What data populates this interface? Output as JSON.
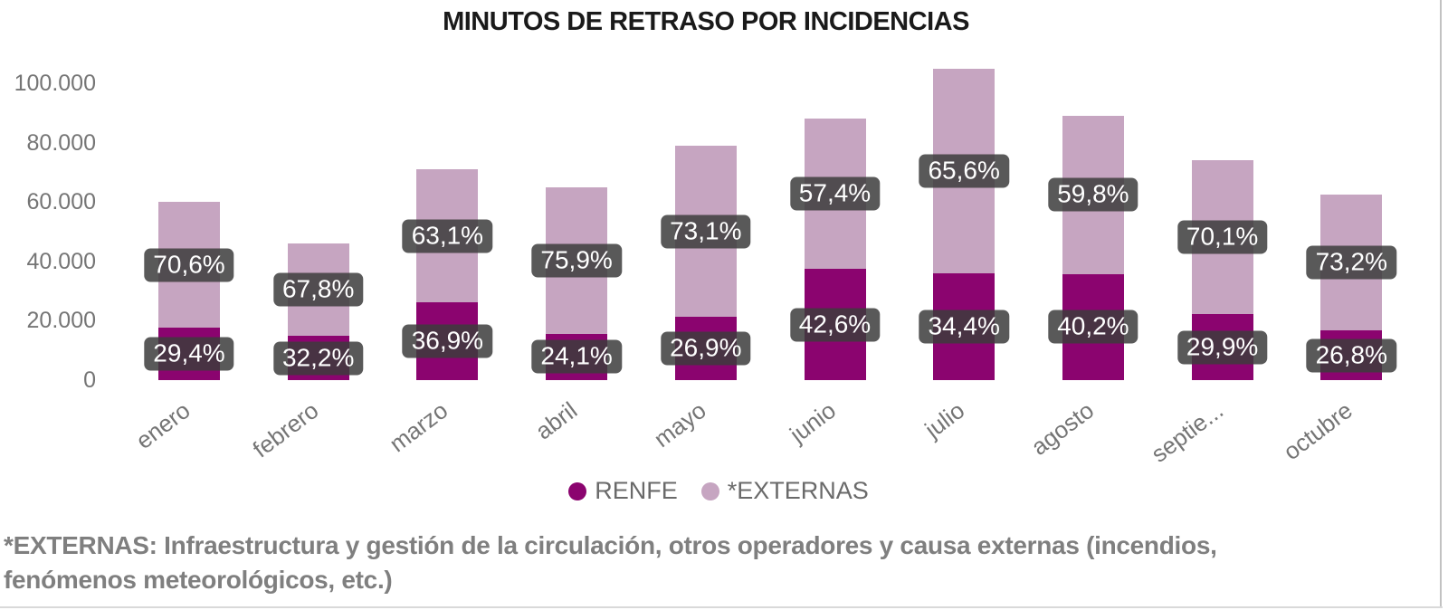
{
  "title": "MINUTOS DE RETRASO POR INCIDENCIAS",
  "colors": {
    "renfe": "#8B046F",
    "externas": "#C6A5C1",
    "label_bg": "rgba(60,60,60,0.85)",
    "label_text": "#FFFFFF",
    "axis_text": "#757575",
    "legend_text": "#6A6A6A",
    "title_text": "#1A1A1A",
    "footnote_text": "#7F7F7F"
  },
  "legend": {
    "items": [
      {
        "label": "RENFE",
        "color_key": "renfe"
      },
      {
        "label": "*EXTERNAS",
        "color_key": "externas"
      }
    ]
  },
  "footnote": {
    "line1": "*EXTERNAS: Infraestructura y gestión de la circulación, otros operadores y causa externas (incendios,",
    "line2": "fenómenos meteorológicos, etc.)"
  },
  "chart_data": {
    "type": "bar",
    "stacked": true,
    "title": "MINUTOS DE RETRASO POR INCIDENCIAS",
    "xlabel": "",
    "ylabel": "",
    "grid": false,
    "legend_position": "bottom",
    "categories": [
      "enero",
      "febrero",
      "marzo",
      "abril",
      "mayo",
      "junio",
      "julio",
      "agosto",
      "septie...",
      "octubre"
    ],
    "y_axis": {
      "ticks": [
        {
          "label": "0",
          "value": 0
        },
        {
          "label": "20.000",
          "value": 20000
        },
        {
          "label": "40.000",
          "value": 40000
        },
        {
          "label": "60.000",
          "value": 60000
        },
        {
          "label": "80.000",
          "value": 80000
        },
        {
          "label": "100.000",
          "value": 100000
        }
      ],
      "range": [
        0,
        105000
      ]
    },
    "estimated_totals_minutes": [
      60000,
      46000,
      71000,
      65000,
      79000,
      88000,
      105000,
      89000,
      74000,
      62500
    ],
    "series": [
      {
        "name": "RENFE",
        "percents": [
          29.4,
          32.2,
          36.9,
          24.1,
          26.9,
          42.6,
          34.4,
          40.2,
          29.9,
          26.8
        ],
        "percent_labels": [
          "29,4%",
          "32,2%",
          "36,9%",
          "24,1%",
          "26,9%",
          "42,6%",
          "34,4%",
          "40,2%",
          "29,9%",
          "26,8%"
        ]
      },
      {
        "name": "*EXTERNAS",
        "percents": [
          70.6,
          67.8,
          63.1,
          75.9,
          73.1,
          57.4,
          65.6,
          59.8,
          70.1,
          73.2
        ],
        "percent_labels": [
          "70,6%",
          "67,8%",
          "63,1%",
          "75,9%",
          "73,1%",
          "57,4%",
          "65,6%",
          "59,8%",
          "70,1%",
          "73,2%"
        ]
      }
    ]
  }
}
